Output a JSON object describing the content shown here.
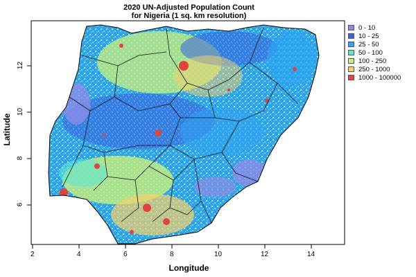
{
  "map": {
    "title_line1": "2020 UN-Adjusted Population Count",
    "title_line2": "for Nigeria (1 sq. km resolution)",
    "xlabel": "Longitude",
    "ylabel": "Latitude",
    "x_ticks": [
      "2",
      "4",
      "6",
      "8",
      "10",
      "12",
      "14"
    ],
    "y_ticks": [
      "6",
      "8",
      "10",
      "12"
    ],
    "xlim": [
      2,
      15.5
    ],
    "ylim": [
      4.2,
      14
    ],
    "legend": [
      {
        "label": "0 - 10",
        "color": "#8b8be6"
      },
      {
        "label": "10 - 25",
        "color": "#3b63e0"
      },
      {
        "label": "25 - 50",
        "color": "#2ea4f2"
      },
      {
        "label": "50 - 100",
        "color": "#5fe6d2"
      },
      {
        "label": "100 - 250",
        "color": "#c8f07a"
      },
      {
        "label": "250 - 1000",
        "color": "#f5d26a"
      },
      {
        "label": "1000 - 100000",
        "color": "#e0443e"
      }
    ]
  }
}
